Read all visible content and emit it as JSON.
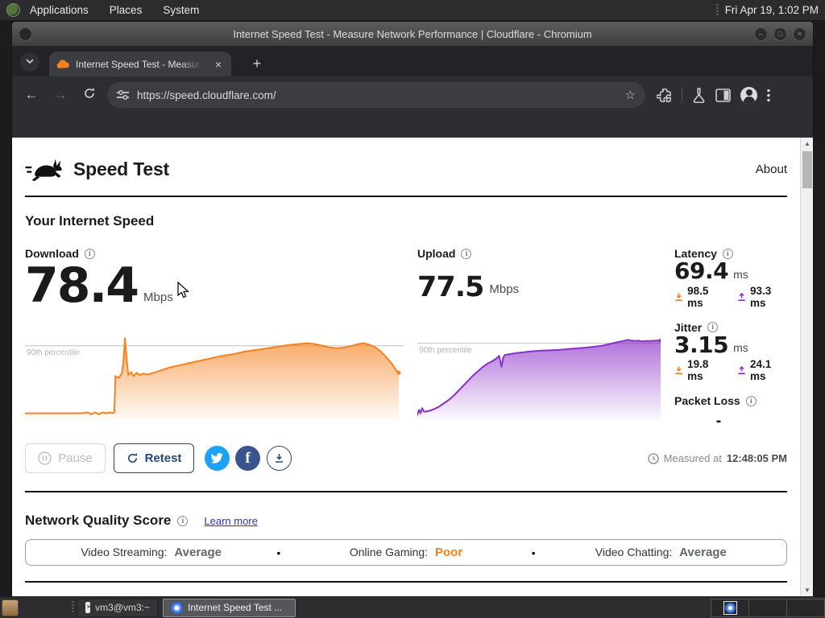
{
  "desktop": {
    "panel": {
      "menus": [
        "Applications",
        "Places",
        "System"
      ],
      "clock": "Fri Apr 19, 1:02 PM"
    },
    "taskbar": {
      "terminal_item": "vm3@vm3:~",
      "browser_item": "Internet Speed Test ..."
    }
  },
  "browser": {
    "window_title": "Internet Speed Test - Measure Network Performance | Cloudflare - Chromium",
    "tab_title": "Internet Speed Test - Measur",
    "new_tab_label": "+",
    "url": "https://speed.cloudflare.com/"
  },
  "page": {
    "brand": "Speed Test",
    "about_link": "About",
    "section_title": "Your Internet Speed",
    "download": {
      "label": "Download",
      "value": "78.4",
      "unit": "Mbps"
    },
    "upload": {
      "label": "Upload",
      "value": "77.5",
      "unit": "Mbps"
    },
    "latency": {
      "label": "Latency",
      "value": "69.4",
      "unit": "ms",
      "down": "98.5 ms",
      "up": "93.3 ms"
    },
    "jitter": {
      "label": "Jitter",
      "value": "3.15",
      "unit": "ms",
      "down": "19.8 ms",
      "up": "24.1 ms"
    },
    "packet_loss": {
      "label": "Packet Loss",
      "value": "-"
    },
    "percentile_label": "90th percentile",
    "pause_button": "Pause",
    "retest_button": "Retest",
    "measured_prefix": "Measured at",
    "measured_time": "12:48:05 PM",
    "network_quality": {
      "title": "Network Quality Score",
      "learn_more": "Learn more",
      "separator": "•",
      "items": [
        {
          "label": "Video Streaming:",
          "value": "Average",
          "color": "#62676c"
        },
        {
          "label": "Online Gaming:",
          "value": "Poor",
          "color": "#f6821f"
        },
        {
          "label": "Video Chatting:",
          "value": "Average",
          "color": "#62676c"
        }
      ]
    }
  },
  "chart_data": [
    {
      "type": "area",
      "title": "Download speed over time (Mbps, normalized %)",
      "line_color": "#f6821f",
      "fill_top": "rgba(246,130,31,0.70)",
      "fill_bottom": "rgba(246,130,31,0.03)",
      "percentile_value": 88,
      "percentile_line_color": "#cccccc",
      "ylim": [
        0,
        100
      ],
      "points": [
        [
          0,
          8
        ],
        [
          4,
          8
        ],
        [
          8,
          8
        ],
        [
          12,
          8
        ],
        [
          15,
          8
        ],
        [
          16.5,
          9
        ],
        [
          17.5,
          7
        ],
        [
          18.5,
          9
        ],
        [
          19.5,
          7
        ],
        [
          20.5,
          9
        ],
        [
          21.5,
          8
        ],
        [
          22.5,
          9
        ],
        [
          23.2,
          8
        ],
        [
          23.6,
          9
        ],
        [
          23.9,
          52
        ],
        [
          24.8,
          50
        ],
        [
          25.6,
          55
        ],
        [
          26,
          70
        ],
        [
          26.4,
          97
        ],
        [
          26.9,
          70
        ],
        [
          27.3,
          53
        ],
        [
          28,
          57
        ],
        [
          28.7,
          52
        ],
        [
          29.5,
          56
        ],
        [
          30.3,
          53
        ],
        [
          31.2,
          55
        ],
        [
          32.5,
          54
        ],
        [
          34,
          56
        ],
        [
          36,
          59
        ],
        [
          38,
          62
        ],
        [
          40,
          64
        ],
        [
          43,
          67
        ],
        [
          46,
          70
        ],
        [
          49,
          73
        ],
        [
          52,
          76
        ],
        [
          55,
          78
        ],
        [
          58,
          81
        ],
        [
          61,
          83
        ],
        [
          64,
          85
        ],
        [
          67,
          87
        ],
        [
          70,
          89
        ],
        [
          72.5,
          90
        ],
        [
          74.5,
          91
        ],
        [
          76.5,
          90
        ],
        [
          78.5,
          88
        ],
        [
          80.5,
          86
        ],
        [
          82.5,
          85
        ],
        [
          84.5,
          86
        ],
        [
          86.5,
          88
        ],
        [
          88,
          90
        ],
        [
          89.5,
          91
        ],
        [
          91,
          89
        ],
        [
          92.5,
          86
        ],
        [
          94,
          81
        ],
        [
          95.5,
          74
        ],
        [
          97,
          66
        ],
        [
          98,
          59
        ],
        [
          98.7,
          56
        ]
      ]
    },
    {
      "type": "area",
      "title": "Upload speed over time (Mbps, normalized %)",
      "line_color": "#8b2fc9",
      "fill_top": "rgba(139,47,201,0.68)",
      "fill_bottom": "rgba(139,47,201,0.03)",
      "percentile_value": 91,
      "percentile_line_color": "#cccccc",
      "ylim": [
        0,
        100
      ],
      "points": [
        [
          0,
          6
        ],
        [
          0.7,
          12
        ],
        [
          1.3,
          8
        ],
        [
          2,
          14
        ],
        [
          2.7,
          10
        ],
        [
          3.5,
          10
        ],
        [
          5,
          11
        ],
        [
          7,
          13
        ],
        [
          9,
          16
        ],
        [
          11,
          20
        ],
        [
          13,
          24
        ],
        [
          15,
          29
        ],
        [
          17,
          35
        ],
        [
          19,
          41
        ],
        [
          21,
          47
        ],
        [
          23,
          53
        ],
        [
          25,
          58
        ],
        [
          27,
          63
        ],
        [
          29,
          67
        ],
        [
          31,
          70
        ],
        [
          32.5,
          73
        ],
        [
          33.6,
          76
        ],
        [
          34.6,
          63
        ],
        [
          35.3,
          74
        ],
        [
          36,
          77
        ],
        [
          38,
          78
        ],
        [
          40,
          79
        ],
        [
          43,
          80
        ],
        [
          46,
          81
        ],
        [
          50,
          82
        ],
        [
          54,
          82.5
        ],
        [
          58,
          83
        ],
        [
          62,
          84
        ],
        [
          66,
          85
        ],
        [
          70,
          86
        ],
        [
          73,
          87
        ],
        [
          76,
          88
        ],
        [
          79,
          90
        ],
        [
          82,
          92
        ],
        [
          84.5,
          93.5
        ],
        [
          86.5,
          95
        ],
        [
          88,
          94
        ],
        [
          89.5,
          93.5
        ],
        [
          91,
          94
        ],
        [
          92.5,
          93
        ],
        [
          94,
          93.5
        ],
        [
          96,
          93.5
        ],
        [
          98,
          94
        ],
        [
          100,
          94
        ]
      ]
    }
  ]
}
